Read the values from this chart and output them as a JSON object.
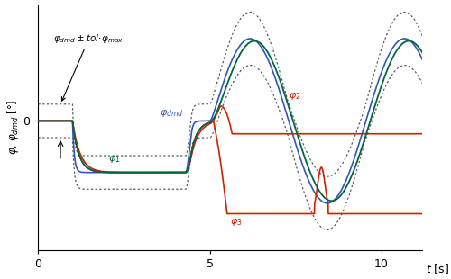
{
  "bg_color": "#ffffff",
  "phi_dmd_color": "#3355bb",
  "phi1_color": "#006644",
  "phi2_color": "#cc2200",
  "phi3_color": "#cc2200",
  "tol_color": "#555555",
  "xlim": [
    0,
    11.2
  ],
  "ylim": [
    -5.0,
    4.5
  ],
  "xticks": [
    0,
    5,
    10
  ],
  "ytick_zero": 0
}
